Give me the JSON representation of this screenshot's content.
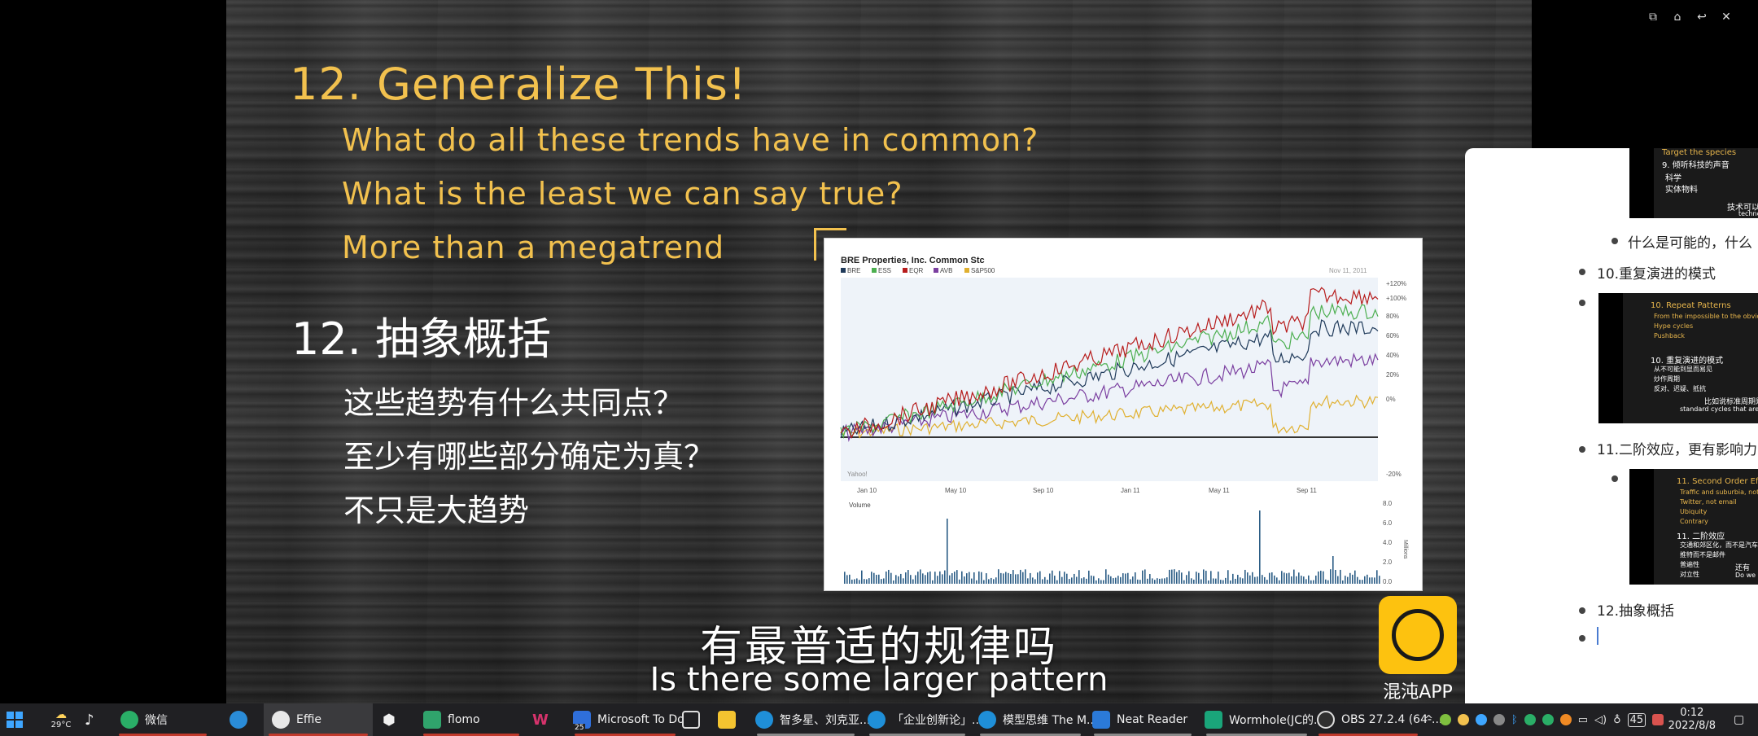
{
  "slide": {
    "en_title": "12. Generalize This!",
    "en_lines": [
      "What do all these trends have in common?",
      "What is the least we can say true?",
      "More than a megatrend"
    ],
    "cn_title": "12. 抽象概括",
    "cn_lines": [
      "这些趋势有什么共同点？",
      "至少有哪些部分确定为真？",
      "不只是大趋势"
    ]
  },
  "chart": {
    "title": "BRE Properties, Inc. Common Stc",
    "legend": [
      "BRE",
      "ESS",
      "EQR",
      "AVB",
      "S&P500"
    ],
    "date_label": "Nov 11, 2011",
    "x_ticks": [
      "Jan 10",
      "May 10",
      "Sep 10",
      "Jan 11",
      "May 11",
      "Sep 11"
    ],
    "y_ticks": [
      "+120%",
      "+100%",
      "80%",
      "60%",
      "40%",
      "20%",
      "0%",
      "-20%"
    ],
    "volume_label": "Volume",
    "volume_ticks": [
      "8.0",
      "6.0",
      "4.0",
      "2.0",
      "0.0"
    ],
    "volume_unit": "Millions",
    "watermark": "Yahoo!",
    "colors": {
      "BRE": "#1f3a5a",
      "ESS": "#4caf50",
      "EQR": "#b71c1c",
      "AVB": "#7b3fa0",
      "SP500": "#e0b030"
    }
  },
  "subtitles": {
    "cn": "有最普适的规律吗",
    "en": "Is there some larger pattern"
  },
  "logo": {
    "text": "混沌APP"
  },
  "panel": {
    "thumb1": {
      "lines": [
        "9. 倾听科技的声音",
        "科学",
        "实体物料",
        "技术可以",
        "technol"
      ],
      "title_line": "Target the species"
    },
    "row1": "什么是可能的，什么",
    "row2": "10.重复演进的模式",
    "thumb2": {
      "tlines": [
        "10. Repeat Patterns",
        "From the impossible to the obvious",
        "Hype cycles",
        "Pushback"
      ],
      "wlines": [
        "10. 重复演进的模式",
        "从不可能到显而易见",
        "炒作周期",
        "反对、迟疑、抵抗",
        "比如说标准周期是",
        "standard cycles that are really"
      ]
    },
    "row3": "11.二阶效应，更有影响力",
    "thumb3": {
      "tlines": [
        "11. Second Order Effects",
        "Traffic and suburbia, not just",
        "Twitter, not email",
        "Ubiquity",
        "Contrary"
      ],
      "wlines": [
        "11. 二阶效应",
        "交通和郊区化，而不是汽车",
        "推特而不是邮件",
        "普遍性",
        "对立性",
        "还有",
        "Do we"
      ]
    },
    "row4": "12.抽象概括"
  },
  "taskbar": {
    "weather": "29°C",
    "apps": [
      {
        "label": "微信",
        "color": "#2aae67"
      },
      {
        "label": "Effie",
        "color": "#e8e8e8"
      },
      {
        "label": "flomo",
        "color": "#30a46c"
      },
      {
        "label": "Microsoft To Do",
        "color": "#2f6fdb"
      },
      {
        "label": "智多星、刘克亚...",
        "color": "#1f8fd8"
      },
      {
        "label": "「企业创新论」...",
        "color": "#1f8fd8"
      },
      {
        "label": "模型思维 The M...",
        "color": "#1f8fd8"
      },
      {
        "label": "Neat Reader",
        "color": "#2b7ad8"
      },
      {
        "label": "Wormhole(JC的...",
        "color": "#1aa57a"
      },
      {
        "label": "OBS 27.2.4 (64-...",
        "color": "#303030"
      }
    ],
    "badge": "25",
    "tray_badge": "45",
    "time": "0:12",
    "date": "2022/8/8"
  }
}
